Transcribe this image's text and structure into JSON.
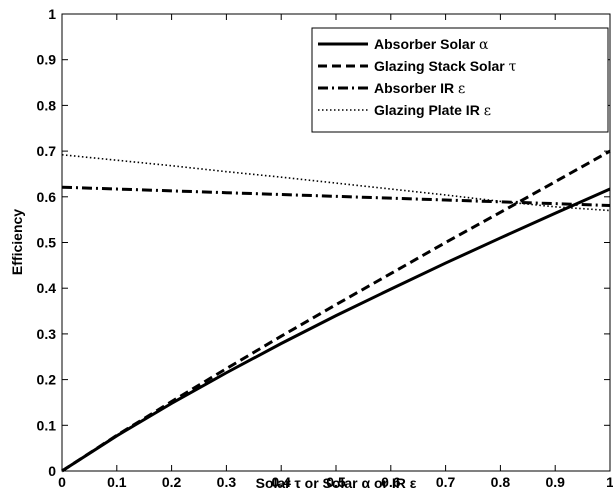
{
  "chart_data": {
    "type": "line",
    "title": "",
    "xlabel": "Solar τ or Solar α or IR ε",
    "ylabel": "Efficiency",
    "xlim": [
      0,
      1
    ],
    "ylim": [
      0,
      1
    ],
    "x_ticks": [
      "0",
      "0.1",
      "0.2",
      "0.3",
      "0.4",
      "0.5",
      "0.6",
      "0.7",
      "0.8",
      "0.9",
      "1"
    ],
    "y_ticks": [
      "0",
      "0.1",
      "0.2",
      "0.3",
      "0.4",
      "0.5",
      "0.6",
      "0.7",
      "0.8",
      "0.9",
      "1"
    ],
    "grid": false,
    "legend_position": "top-right",
    "series": [
      {
        "name": "Absorber Solar",
        "symbol": "α",
        "line_style": "solid",
        "color": "#000000",
        "x": [
          0,
          0.1,
          0.2,
          0.3,
          0.4,
          0.5,
          0.6,
          0.7,
          0.8,
          0.9,
          1.0
        ],
        "y": [
          0,
          0.077,
          0.148,
          0.215,
          0.279,
          0.34,
          0.398,
          0.455,
          0.51,
          0.564,
          0.617
        ]
      },
      {
        "name": "Glazing Stack Solar",
        "symbol": "τ",
        "line_style": "dashed",
        "color": "#000000",
        "x": [
          0,
          0.1,
          0.2,
          0.3,
          0.4,
          0.5,
          0.6,
          0.7,
          0.8,
          0.9,
          1.0
        ],
        "y": [
          0,
          0.078,
          0.152,
          0.224,
          0.295,
          0.364,
          0.432,
          0.5,
          0.566,
          0.633,
          0.7
        ]
      },
      {
        "name": "Absorber IR",
        "symbol": "ε",
        "line_style": "dashdot",
        "color": "#000000",
        "x": [
          0,
          0.1,
          0.2,
          0.3,
          0.4,
          0.5,
          0.6,
          0.7,
          0.8,
          0.9,
          1.0
        ],
        "y": [
          0.621,
          0.617,
          0.613,
          0.609,
          0.605,
          0.601,
          0.597,
          0.593,
          0.589,
          0.585,
          0.581
        ]
      },
      {
        "name": "Glazing Plate IR",
        "symbol": "ε",
        "line_style": "dotted",
        "color": "#000000",
        "x": [
          0,
          0.1,
          0.2,
          0.3,
          0.4,
          0.5,
          0.6,
          0.7,
          0.8,
          0.9,
          1.0
        ],
        "y": [
          0.692,
          0.68,
          0.668,
          0.655,
          0.643,
          0.63,
          0.617,
          0.604,
          0.59,
          0.578,
          0.57
        ]
      }
    ]
  }
}
